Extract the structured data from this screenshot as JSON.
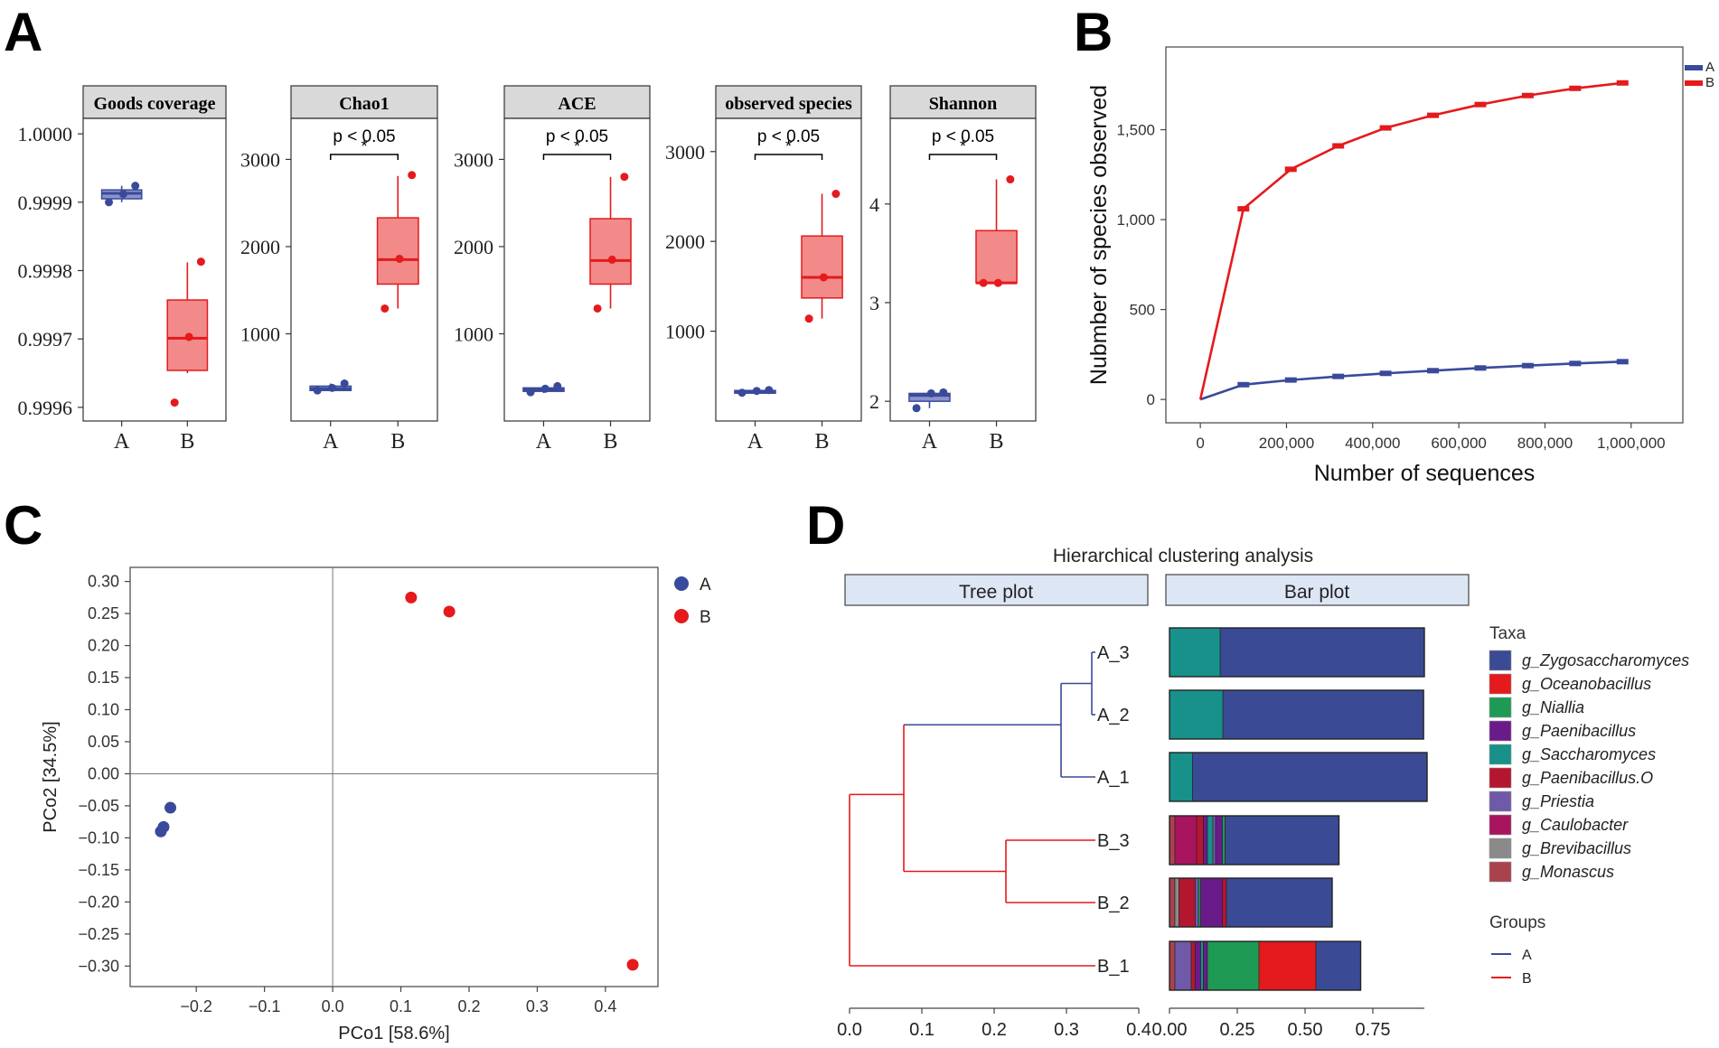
{
  "panel_letters": [
    "A",
    "B",
    "C",
    "D"
  ],
  "colors": {
    "group_A": "#3a4a9a",
    "group_A_fill": "#8a93cc",
    "group_B": "#e41a1c",
    "group_B_fill": "#f28a8a",
    "strip_bg": "#d9d9d9",
    "header_bg": "#dde6f5",
    "grid": "#888888"
  },
  "chart_data": [
    {
      "id": "A",
      "type": "box",
      "groups": [
        "A",
        "B"
      ],
      "significance": "p < 0.05",
      "star": "*",
      "facets": [
        {
          "title": "Goods coverage",
          "ylim": [
            0.99958,
            1.00002
          ],
          "yticks": [
            1.0,
            0.9999,
            0.9998,
            0.9997,
            0.9996
          ],
          "ytick_labels": [
            "1.0000",
            "0.9999",
            "0.9998",
            "0.9997",
            "0.9996"
          ],
          "show_sig": false,
          "boxes": [
            {
              "group": "A",
              "min": 0.9999,
              "q1": 0.999905,
              "median": 0.999913,
              "q3": 0.999918,
              "max": 0.999924,
              "points": [
                0.9999,
                0.999912,
                0.999924
              ]
            },
            {
              "group": "B",
              "min": 0.99965,
              "q1": 0.999654,
              "median": 0.999701,
              "q3": 0.999757,
              "max": 0.999812,
              "points": [
                0.999607,
                0.999703,
                0.999813
              ]
            }
          ]
        },
        {
          "title": "Chao1",
          "ylim": [
            0,
            3450
          ],
          "yticks": [
            1000,
            2000,
            3000
          ],
          "ytick_labels": [
            "1000",
            "2000",
            "3000"
          ],
          "show_sig": true,
          "boxes": [
            {
              "group": "A",
              "min": 340,
              "q1": 350,
              "median": 370,
              "q3": 400,
              "max": 430,
              "points": [
                350,
                380,
                430
              ]
            },
            {
              "group": "B",
              "min": 1290,
              "q1": 1570,
              "median": 1850,
              "q3": 2330,
              "max": 2810,
              "points": [
                1290,
                1860,
                2820
              ]
            }
          ]
        },
        {
          "title": "ACE",
          "ylim": [
            0,
            3450
          ],
          "yticks": [
            1000,
            2000,
            3000
          ],
          "ytick_labels": [
            "1000",
            "2000",
            "3000"
          ],
          "show_sig": true,
          "boxes": [
            {
              "group": "A",
              "min": 320,
              "q1": 340,
              "median": 360,
              "q3": 380,
              "max": 400,
              "points": [
                330,
                370,
                400
              ]
            },
            {
              "group": "B",
              "min": 1290,
              "q1": 1570,
              "median": 1840,
              "q3": 2320,
              "max": 2800,
              "points": [
                1290,
                1850,
                2800
              ]
            }
          ]
        },
        {
          "title": "observed species",
          "ylim": [
            0,
            3350
          ],
          "yticks": [
            1000,
            2000,
            3000
          ],
          "ytick_labels": [
            "1000",
            "2000",
            "3000"
          ],
          "show_sig": true,
          "boxes": [
            {
              "group": "A",
              "min": 300,
              "q1": 310,
              "median": 325,
              "q3": 340,
              "max": 350,
              "points": [
                315,
                335,
                345
              ]
            },
            {
              "group": "B",
              "min": 1140,
              "q1": 1370,
              "median": 1600,
              "q3": 2060,
              "max": 2530,
              "points": [
                1140,
                1600,
                2530
              ]
            }
          ]
        },
        {
          "title": "Shannon",
          "ylim": [
            1.8,
            4.85
          ],
          "yticks": [
            2,
            3,
            4
          ],
          "ytick_labels": [
            "2",
            "3",
            "4"
          ],
          "show_sig": true,
          "boxes": [
            {
              "group": "A",
              "min": 1.93,
              "q1": 2.0,
              "median": 2.06,
              "q3": 2.08,
              "max": 2.09,
              "points": [
                1.93,
                2.08,
                2.09
              ]
            },
            {
              "group": "B",
              "min": 3.2,
              "q1": 3.2,
              "median": 3.2,
              "q3": 3.73,
              "max": 4.25,
              "points": [
                3.2,
                3.2,
                4.25
              ]
            }
          ]
        }
      ]
    },
    {
      "id": "B",
      "type": "line",
      "xlabel": "Number of sequences",
      "ylabel": "Nubmber of species observed",
      "xlim": [
        -80000,
        1120000
      ],
      "ylim": [
        -130,
        1960
      ],
      "xticks": [
        0,
        200000,
        400000,
        600000,
        800000,
        1000000
      ],
      "xtick_labels": [
        "0",
        "200,000",
        "400,000",
        "600,000",
        "800,000",
        "1,000,000"
      ],
      "yticks": [
        0,
        500,
        1000,
        1500
      ],
      "ytick_labels": [
        "0",
        "500",
        "1,000",
        "1,500"
      ],
      "legend": [
        "A",
        "B"
      ],
      "series": [
        {
          "name": "A",
          "x": [
            0,
            100000,
            210000,
            320000,
            430000,
            540000,
            650000,
            760000,
            870000,
            980000
          ],
          "y": [
            0,
            82,
            108,
            128,
            145,
            160,
            175,
            188,
            200,
            210
          ]
        },
        {
          "name": "B",
          "x": [
            0,
            100000,
            210000,
            320000,
            430000,
            540000,
            650000,
            760000,
            870000,
            980000
          ],
          "y": [
            0,
            1060,
            1280,
            1410,
            1510,
            1580,
            1640,
            1690,
            1730,
            1760
          ]
        }
      ]
    },
    {
      "id": "C",
      "type": "scatter",
      "xlabel": "PCo1 [58.6%]",
      "ylabel": "PCo2 [34.5%]",
      "xlim": [
        -0.297,
        0.477
      ],
      "ylim": [
        -0.332,
        0.322
      ],
      "xticks": [
        -0.2,
        -0.1,
        0.0,
        0.1,
        0.2,
        0.3,
        0.4
      ],
      "xtick_labels": [
        "−0.2",
        "−0.1",
        "0.0",
        "0.1",
        "0.2",
        "0.3",
        "0.4"
      ],
      "yticks": [
        0.3,
        0.25,
        0.2,
        0.15,
        0.1,
        0.05,
        0.0,
        -0.05,
        -0.1,
        -0.15,
        -0.2,
        -0.25,
        -0.3
      ],
      "ytick_labels": [
        "0.30",
        "0.25",
        "0.20",
        "0.15",
        "0.10",
        "0.05",
        "0.00",
        "−0.05",
        "−0.10",
        "−0.15",
        "−0.20",
        "−0.25",
        "−0.30"
      ],
      "legend": [
        "A",
        "B"
      ],
      "series": [
        {
          "name": "A",
          "points": [
            [
              -0.238,
              -0.053
            ],
            [
              -0.248,
              -0.083
            ],
            [
              -0.252,
              -0.09
            ]
          ]
        },
        {
          "name": "B",
          "points": [
            [
              0.115,
              0.275
            ],
            [
              0.171,
              0.253
            ],
            [
              0.44,
              -0.298
            ]
          ]
        }
      ]
    },
    {
      "id": "D",
      "type": "stacked_bar_with_dendrogram",
      "title": "Hierarchical clustering analysis",
      "tree_header": "Tree plot",
      "bar_header": "Bar plot",
      "samples": [
        "A_3",
        "A_2",
        "A_1",
        "B_3",
        "B_2",
        "B_1"
      ],
      "tree_xticks": [
        0.0,
        0.1,
        0.2,
        0.3,
        0.4
      ],
      "tree_xtick_labels": [
        "0.0",
        "0.1",
        "0.2",
        "0.3",
        "0.4"
      ],
      "bar_xticks": [
        0.0,
        0.25,
        0.5,
        0.75
      ],
      "bar_xtick_labels": [
        "0.00",
        "0.25",
        "0.50",
        "0.75"
      ],
      "legend_title": "Taxa",
      "taxa": [
        "g_Zygosaccharomyces",
        "g_Oceanobacillus",
        "g_Niallia",
        "g_Paenibacillus",
        "g_Saccharomyces",
        "g_Paenibacillus.O",
        "g_Priestia",
        "g_Caulobacter",
        "g_Brevibacillus",
        "g_Monascus"
      ],
      "taxa_colors": [
        "#3b4a94",
        "#e41a1c",
        "#1e9a55",
        "#6a1b8a",
        "#17918a",
        "#b5162f",
        "#6e5aa8",
        "#a8145e",
        "#8a8a8a",
        "#a8434e"
      ],
      "groups_title": "Groups",
      "groups": [
        "A",
        "B"
      ],
      "bars": [
        {
          "sample": "A_3",
          "segments": [
            {
              "taxon": "g_Saccharomyces",
              "value": 0.187
            },
            {
              "taxon": "g_Zygosaccharomyces",
              "value": 0.753
            }
          ]
        },
        {
          "sample": "A_2",
          "segments": [
            {
              "taxon": "g_Saccharomyces",
              "value": 0.197
            },
            {
              "taxon": "g_Zygosaccharomyces",
              "value": 0.74
            }
          ]
        },
        {
          "sample": "A_1",
          "segments": [
            {
              "taxon": "g_Saccharomyces",
              "value": 0.085
            },
            {
              "taxon": "g_Zygosaccharomyces",
              "value": 0.865
            }
          ]
        },
        {
          "sample": "B_3",
          "segments": [
            {
              "taxon": "g_Monascus",
              "value": 0.02
            },
            {
              "taxon": "g_Caulobacter",
              "value": 0.08
            },
            {
              "taxon": "g_Paenibacillus.O",
              "value": 0.025
            },
            {
              "taxon": "g_Paenibacillus",
              "value": 0.015
            },
            {
              "taxon": "g_Saccharomyces",
              "value": 0.02
            },
            {
              "taxon": "g_Priestia",
              "value": 0.01
            },
            {
              "taxon": "g_Paenibacillus",
              "value": 0.025
            },
            {
              "taxon": "g_Niallia",
              "value": 0.01
            },
            {
              "taxon": "g_Zygosaccharomyces",
              "value": 0.42
            }
          ]
        },
        {
          "sample": "B_2",
          "segments": [
            {
              "taxon": "g_Monascus",
              "value": 0.02
            },
            {
              "taxon": "g_Brevibacillus",
              "value": 0.015
            },
            {
              "taxon": "g_Paenibacillus.O",
              "value": 0.06
            },
            {
              "taxon": "g_Priestia",
              "value": 0.012
            },
            {
              "taxon": "g_Niallia",
              "value": 0.008
            },
            {
              "taxon": "g_Paenibacillus",
              "value": 0.08
            },
            {
              "taxon": "g_Paenibacillus.O",
              "value": 0.015
            },
            {
              "taxon": "g_Zygosaccharomyces",
              "value": 0.39
            }
          ]
        },
        {
          "sample": "B_1",
          "segments": [
            {
              "taxon": "g_Monascus",
              "value": 0.02
            },
            {
              "taxon": "g_Priestia",
              "value": 0.06
            },
            {
              "taxon": "g_Paenibacillus.O",
              "value": 0.015
            },
            {
              "taxon": "g_Paenibacillus",
              "value": 0.02
            },
            {
              "taxon": "g_Saccharomyces",
              "value": 0.01
            },
            {
              "taxon": "g_Paenibacillus",
              "value": 0.015
            },
            {
              "taxon": "g_Niallia",
              "value": 0.19
            },
            {
              "taxon": "g_Oceanobacillus",
              "value": 0.21
            },
            {
              "taxon": "g_Zygosaccharomyces",
              "value": 0.165
            }
          ]
        }
      ]
    }
  ]
}
